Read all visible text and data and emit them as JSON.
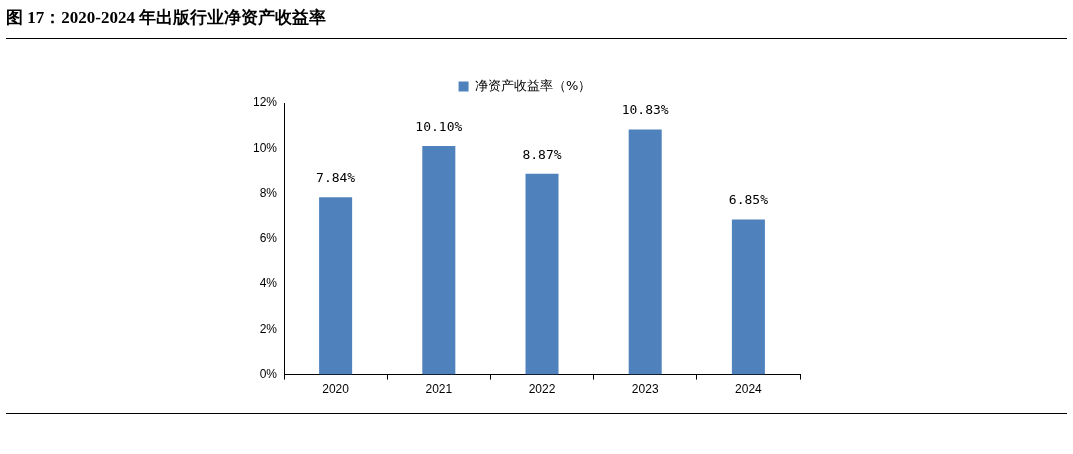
{
  "chart_data": {
    "type": "bar",
    "title": "图 17：2020-2024 年出版行业净资产收益率",
    "categories": [
      "2020",
      "2021",
      "2022",
      "2023",
      "2024"
    ],
    "series": [
      {
        "name": "净资产收益率（%）",
        "color": "#4f81bd",
        "values": [
          7.84,
          10.1,
          8.87,
          10.83,
          6.85
        ],
        "value_labels": [
          "7.84%",
          "10.10%",
          "8.87%",
          "10.83%",
          "6.85%"
        ]
      }
    ],
    "ylim": [
      0,
      12
    ],
    "yticks": [
      {
        "value": 0,
        "label": "0%"
      },
      {
        "value": 2,
        "label": "2%"
      },
      {
        "value": 4,
        "label": "4%"
      },
      {
        "value": 6,
        "label": "6%"
      },
      {
        "value": 8,
        "label": "8%"
      },
      {
        "value": 10,
        "label": "10%"
      },
      {
        "value": 12,
        "label": "12%"
      }
    ],
    "grid": false,
    "legend": "top"
  }
}
